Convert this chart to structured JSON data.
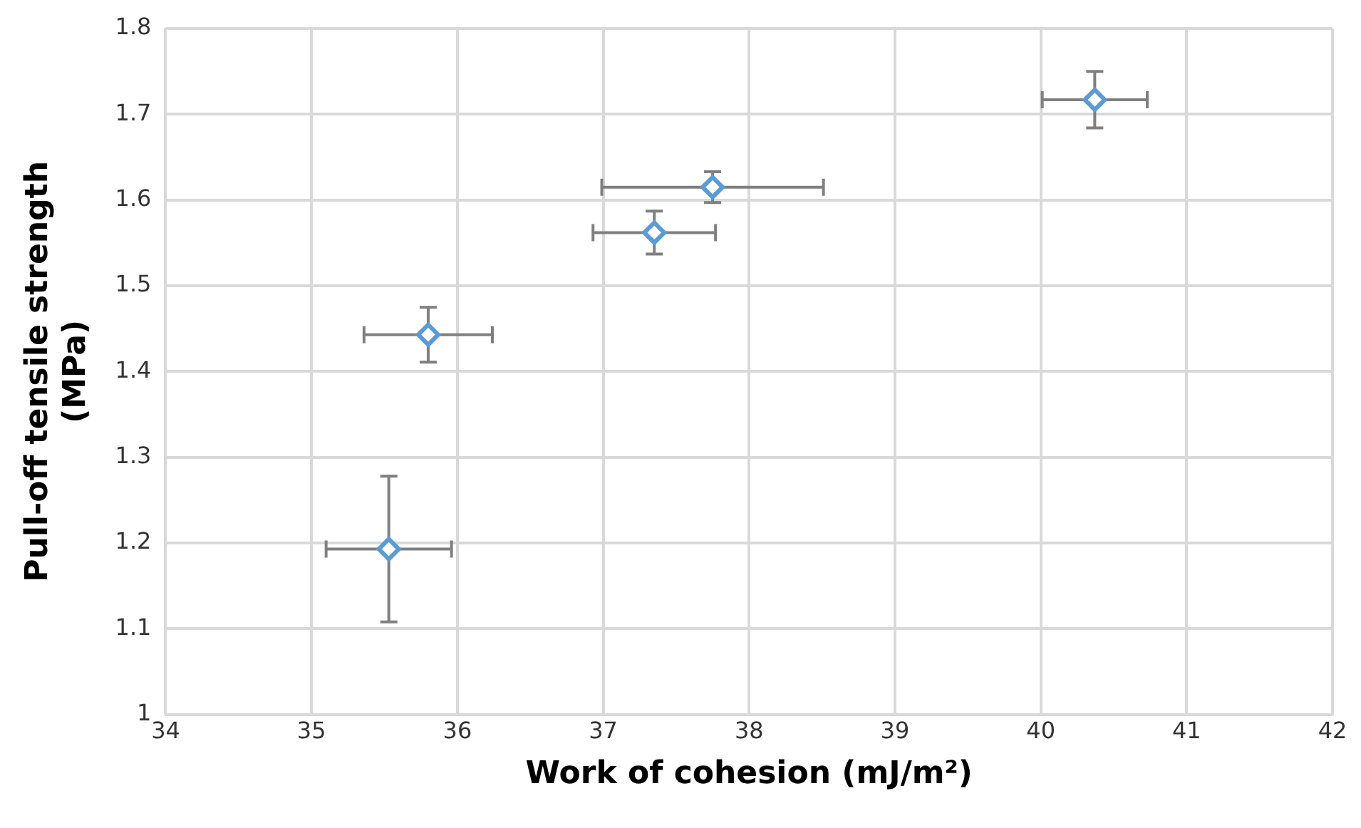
{
  "chart_data": {
    "type": "scatter",
    "xlabel": "Work of cohesion (mJ/m²)",
    "ylabel": "Pull-off tensile strength (MPa)",
    "x": [
      35.53,
      35.8,
      37.35,
      37.75,
      40.37
    ],
    "values": [
      1.193,
      1.443,
      1.562,
      1.615,
      1.717
    ],
    "errors": [
      0.085,
      0.032,
      0.025,
      0.018,
      0.033
    ],
    "xerrors": [
      0.43,
      0.44,
      0.42,
      0.76,
      0.36
    ],
    "color": "#5b9bd5",
    "marker": "diamond",
    "grid": true,
    "xlim": [
      34,
      42
    ],
    "xticks": [
      34,
      35,
      36,
      37,
      38,
      39,
      40,
      41,
      42
    ],
    "ylim": [
      1,
      1.8
    ],
    "yticks": [
      1,
      1.1,
      1.2,
      1.3,
      1.4,
      1.5,
      1.6,
      1.7,
      1.8
    ]
  }
}
